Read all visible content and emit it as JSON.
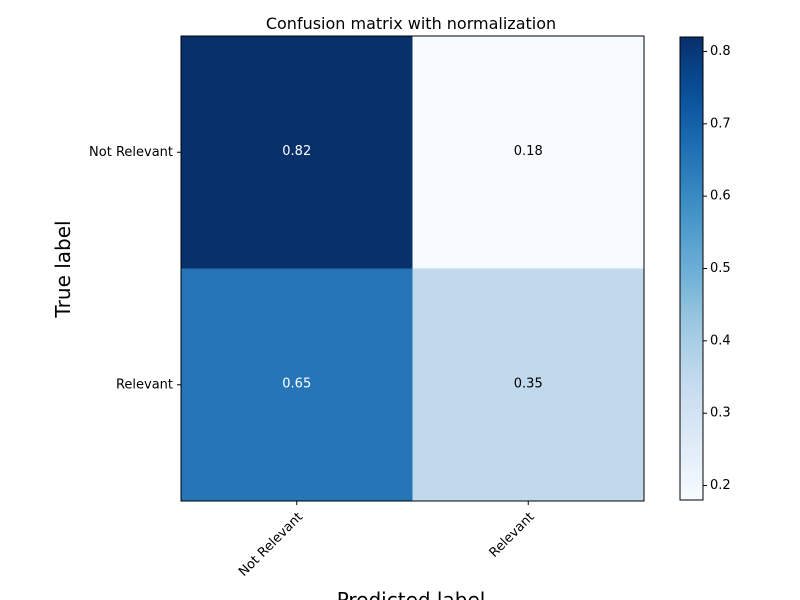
{
  "chart_data": {
    "type": "heatmap",
    "title": "Confusion matrix with normalization",
    "xlabel": "Predicted label",
    "ylabel": "True label",
    "x_categories": [
      "Not Relevant",
      "Relevant"
    ],
    "y_categories": [
      "Not Relevant",
      "Relevant"
    ],
    "values": [
      [
        0.82,
        0.18
      ],
      [
        0.65,
        0.35
      ]
    ],
    "value_labels": [
      [
        "0.82",
        "0.18"
      ],
      [
        "0.65",
        "0.35"
      ]
    ],
    "colormap": "Blues",
    "colorbar": {
      "min": 0.18,
      "max": 0.82,
      "ticks": [
        0.2,
        0.3,
        0.4,
        0.5,
        0.6,
        0.7,
        0.8
      ],
      "tick_labels": [
        "0.2",
        "0.3",
        "0.4",
        "0.5",
        "0.6",
        "0.7",
        "0.8"
      ]
    },
    "grid": false
  }
}
